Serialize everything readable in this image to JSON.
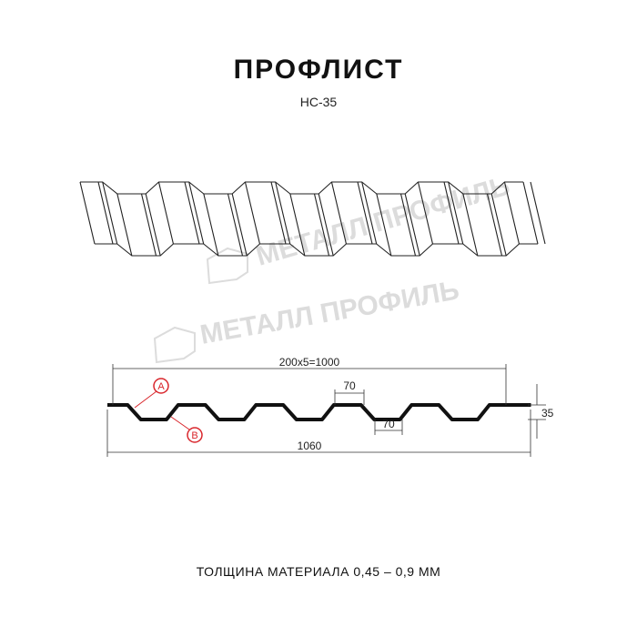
{
  "header": {
    "title": "ПРОФЛИСТ",
    "subtitle": "НС-35"
  },
  "watermark": "МЕТАЛЛ ПРОФИЛЬ",
  "dimensions": {
    "pitch_total": "200x5=1000",
    "top_flat": "70",
    "bottom_flat": "70",
    "height": "35",
    "full_width": "1060"
  },
  "callouts": {
    "a": "A",
    "b": "B"
  },
  "callout_color": "#d9262c",
  "footer": {
    "thickness": "ТОЛЩИНА МАТЕРИАЛА 0,45 – 0,9 ММ"
  }
}
